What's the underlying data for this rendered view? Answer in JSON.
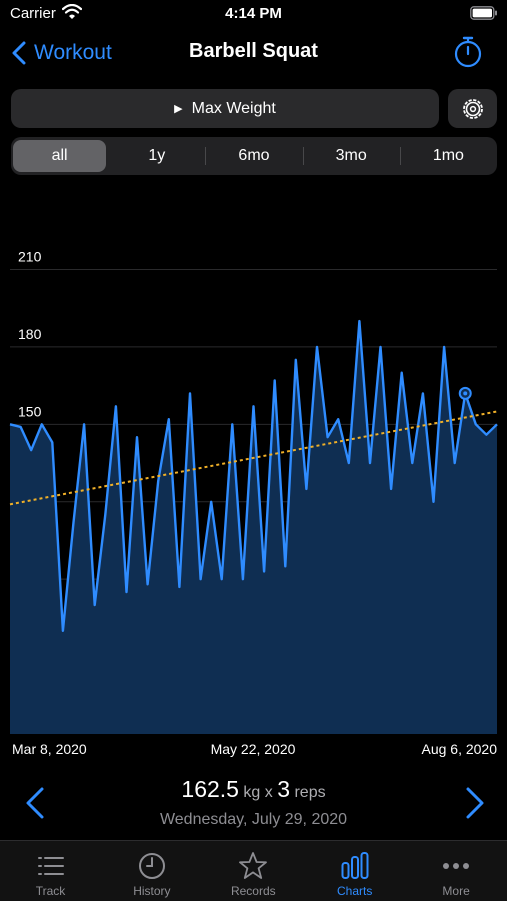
{
  "status_bar": {
    "carrier": "Carrier",
    "time": "4:14 PM"
  },
  "nav": {
    "back_label": "Workout",
    "title": "Barbell Squat"
  },
  "metric": {
    "label": "Max Weight"
  },
  "ranges": [
    {
      "label": "all",
      "active": true
    },
    {
      "label": "1y",
      "active": false
    },
    {
      "label": "6mo",
      "active": false
    },
    {
      "label": "3mo",
      "active": false
    },
    {
      "label": "1mo",
      "active": false
    }
  ],
  "chart_data": {
    "type": "area",
    "series": [
      {
        "values": [
          150,
          149,
          140,
          150,
          143,
          70,
          112,
          150,
          80,
          115,
          157,
          85,
          145,
          88,
          128,
          152,
          87,
          162,
          90,
          120,
          90,
          150,
          90,
          157,
          93,
          167,
          95,
          175,
          125,
          180,
          145,
          152,
          135,
          190,
          135,
          180,
          125,
          170,
          135,
          162,
          120,
          180,
          135,
          162,
          150,
          146,
          150
        ]
      }
    ],
    "trend_line": {
      "start": 119,
      "end": 155
    },
    "highlight_index": 43,
    "ylim": [
      30,
      235
    ],
    "y_ticks": [
      60,
      90,
      120,
      150,
      180,
      210
    ],
    "x_tick_labels": [
      "Mar 8, 2020",
      "May 22, 2020",
      "Aug 6, 2020"
    ],
    "grid": true,
    "colors": {
      "line": "#2f8cff",
      "fill": "#0f2e52",
      "trend": "#f0b028"
    }
  },
  "readout": {
    "weight": "162.5",
    "weight_unit": "kg x",
    "reps": "3",
    "reps_unit": "reps",
    "date": "Wednesday, July 29, 2020"
  },
  "tabs": [
    {
      "label": "Track",
      "icon": "list-icon",
      "active": false
    },
    {
      "label": "History",
      "icon": "clock-icon",
      "active": false
    },
    {
      "label": "Records",
      "icon": "star-icon",
      "active": false
    },
    {
      "label": "Charts",
      "icon": "bar-chart-icon",
      "active": true
    },
    {
      "label": "More",
      "icon": "ellipsis-icon",
      "active": false
    }
  ]
}
